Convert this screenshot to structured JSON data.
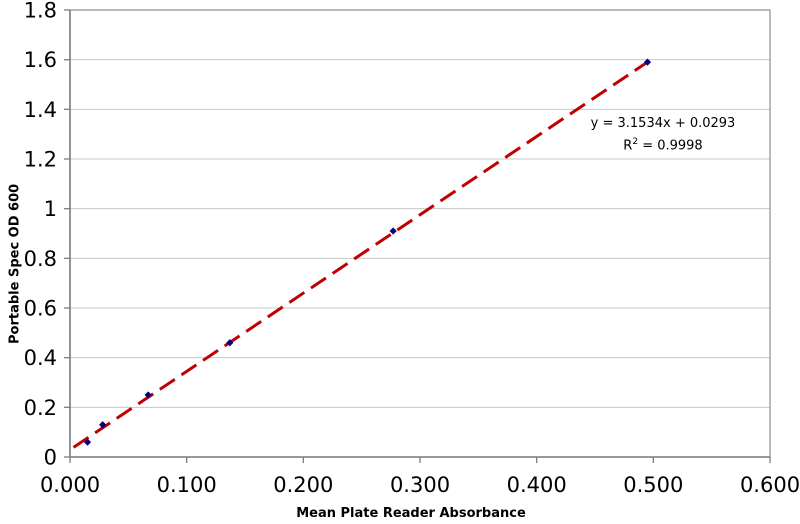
{
  "chart_data": {
    "type": "scatter",
    "title": "",
    "xlabel": "Mean Plate Reader Absorbance",
    "ylabel": "Portable Spec OD 600",
    "xlim": [
      0,
      0.6
    ],
    "ylim": [
      0,
      1.8
    ],
    "x_tick_values": [
      0,
      0.1,
      0.2,
      0.3,
      0.4,
      0.5,
      0.6
    ],
    "x_tick_labels": [
      "0.000",
      "0.100",
      "0.200",
      "0.300",
      "0.400",
      "0.500",
      "0.600"
    ],
    "y_tick_values": [
      0,
      0.2,
      0.4,
      0.6,
      0.8,
      1.0,
      1.2,
      1.4,
      1.6,
      1.8
    ],
    "y_tick_labels": [
      "0",
      "0.2",
      "0.4",
      "0.6",
      "0.8",
      "1",
      "1.2",
      "1.4",
      "1.6",
      "1.8"
    ],
    "grid": "horizontal",
    "legend": "none",
    "marker": "diamond",
    "points": [
      {
        "x": 0.015,
        "y": 0.06
      },
      {
        "x": 0.028,
        "y": 0.13
      },
      {
        "x": 0.067,
        "y": 0.25
      },
      {
        "x": 0.137,
        "y": 0.46
      },
      {
        "x": 0.277,
        "y": 0.91
      },
      {
        "x": 0.495,
        "y": 1.59
      }
    ],
    "trendline": {
      "type": "linear",
      "slope": 3.1534,
      "intercept": 0.0293,
      "x_start": 0.003,
      "x_end": 0.496,
      "style": "dashed"
    },
    "annotation": {
      "equation": "y = 3.1534x + 0.0293",
      "r2_base": "R",
      "r2_sup": "2",
      "r2_rest": " = 0.9998"
    },
    "colors": {
      "point": "#000080",
      "trendline": "#C00000",
      "grid": "#C8C8C8",
      "border": "#8C8C8C",
      "axis": "#7F7F7F",
      "text": "#000000"
    }
  }
}
